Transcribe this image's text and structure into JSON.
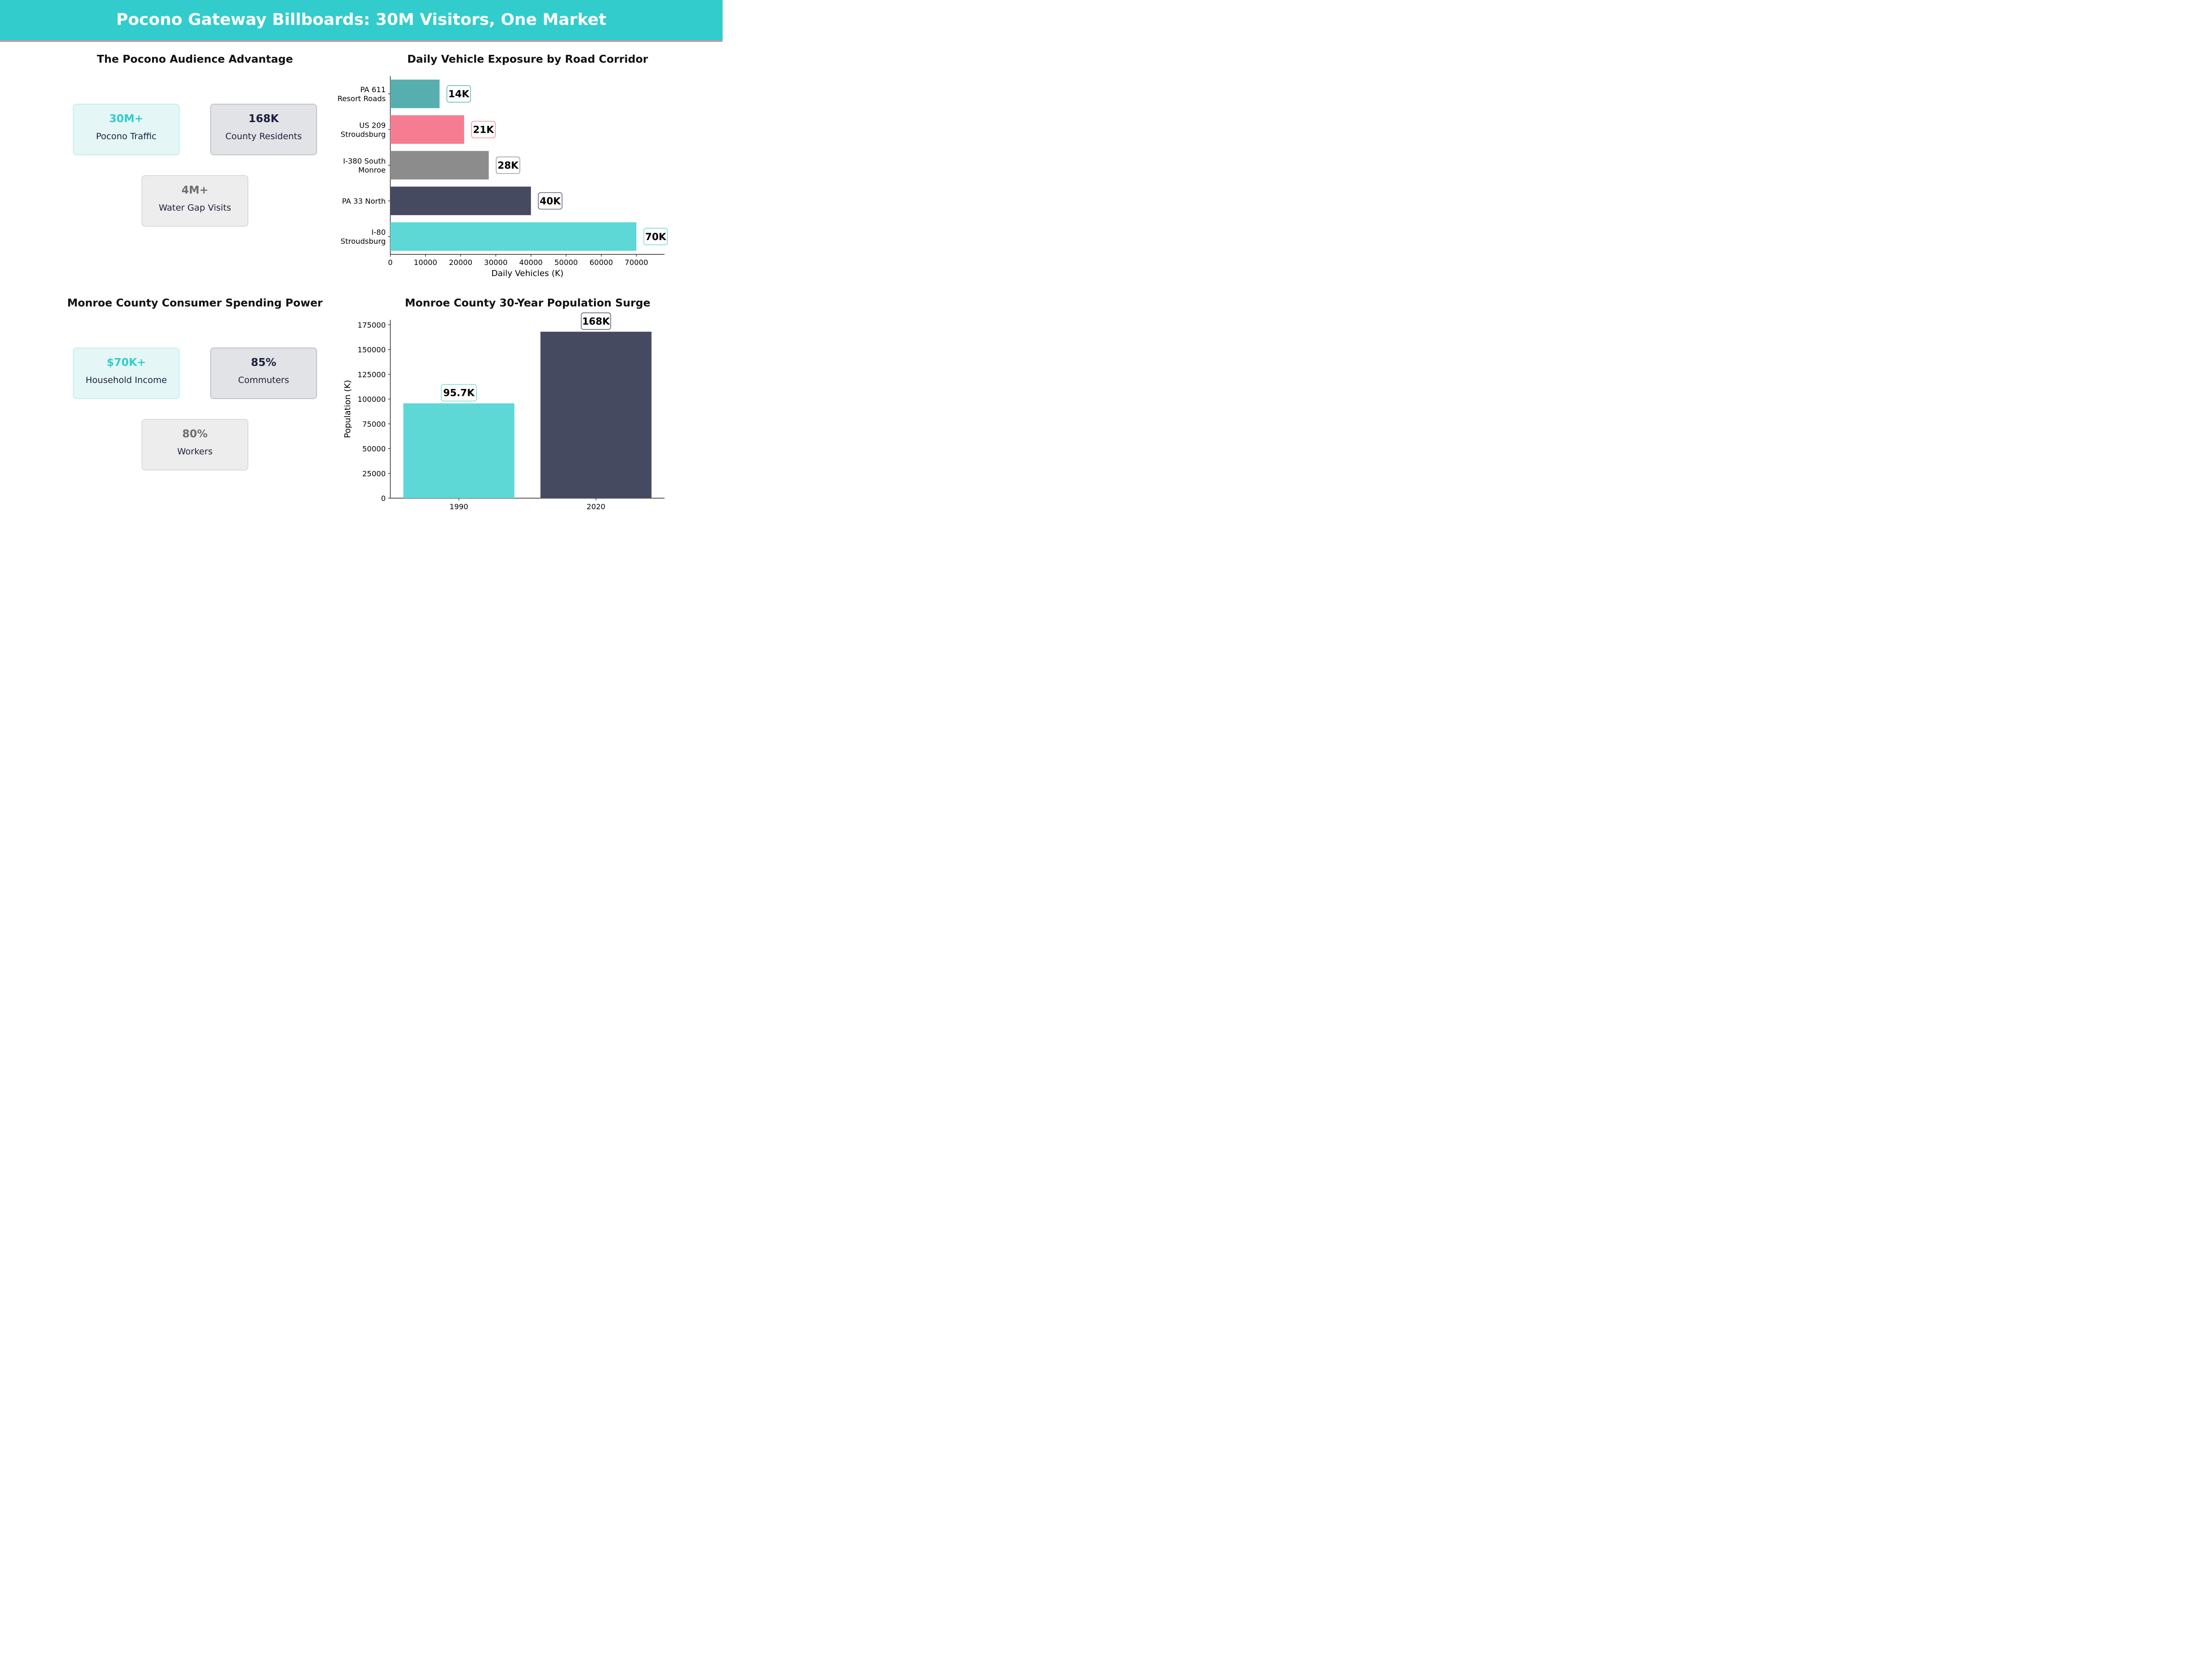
{
  "header": {
    "title": "Pocono Gateway Billboards: 30M Visitors, One Market"
  },
  "colors": {
    "teal": "#5dd8d6",
    "pink": "#f67d91",
    "gray": "#8c8c8c",
    "navy": "#464a61",
    "darkteal": "#56aeae"
  },
  "panels": {
    "audience": {
      "title": "The Pocono Audience Advantage",
      "cards": [
        {
          "value": "30M+",
          "label": "Pocono Traffic"
        },
        {
          "value": "168K",
          "label": "County Residents"
        },
        {
          "value": "4M+",
          "label": "Water Gap Visits"
        }
      ]
    },
    "spending": {
      "title": "Monroe County Consumer Spending Power",
      "cards": [
        {
          "value": "$70K+",
          "label": "Household Income"
        },
        {
          "value": "85%",
          "label": "Commuters"
        },
        {
          "value": "80%",
          "label": "Workers"
        }
      ]
    }
  },
  "chart_data": [
    {
      "type": "bar",
      "orientation": "horizontal",
      "title": "Daily Vehicle Exposure by Road Corridor",
      "xlabel": "Daily Vehicles (K)",
      "ylabel": "",
      "xlim": [
        0,
        78000
      ],
      "xticks": [
        0,
        10000,
        20000,
        30000,
        40000,
        50000,
        60000,
        70000
      ],
      "categories": [
        [
          "PA 611",
          "Resort Roads"
        ],
        [
          "US 209",
          "Stroudsburg"
        ],
        [
          "I-380 South",
          "Monroe"
        ],
        [
          "PA 33 North"
        ],
        [
          "I-80",
          "Stroudsburg"
        ]
      ],
      "values": [
        14000,
        21000,
        28000,
        40000,
        70000
      ],
      "data_labels": [
        "14K",
        "21K",
        "28K",
        "40K",
        "70K"
      ],
      "bar_colors": [
        "#56aeae",
        "#f67d91",
        "#8c8c8c",
        "#464a61",
        "#5dd8d6"
      ],
      "grid": false
    },
    {
      "type": "bar",
      "orientation": "vertical",
      "title": "Monroe County 30-Year Population Surge",
      "xlabel": "",
      "ylabel": "Population (K)",
      "ylim": [
        0,
        180000
      ],
      "yticks": [
        0,
        25000,
        50000,
        75000,
        100000,
        125000,
        150000,
        175000
      ],
      "categories": [
        "1990",
        "2020"
      ],
      "values": [
        95700,
        168000
      ],
      "data_labels": [
        "95.7K",
        "168K"
      ],
      "bar_colors": [
        "#5dd8d6",
        "#464a61"
      ],
      "grid": false
    }
  ]
}
